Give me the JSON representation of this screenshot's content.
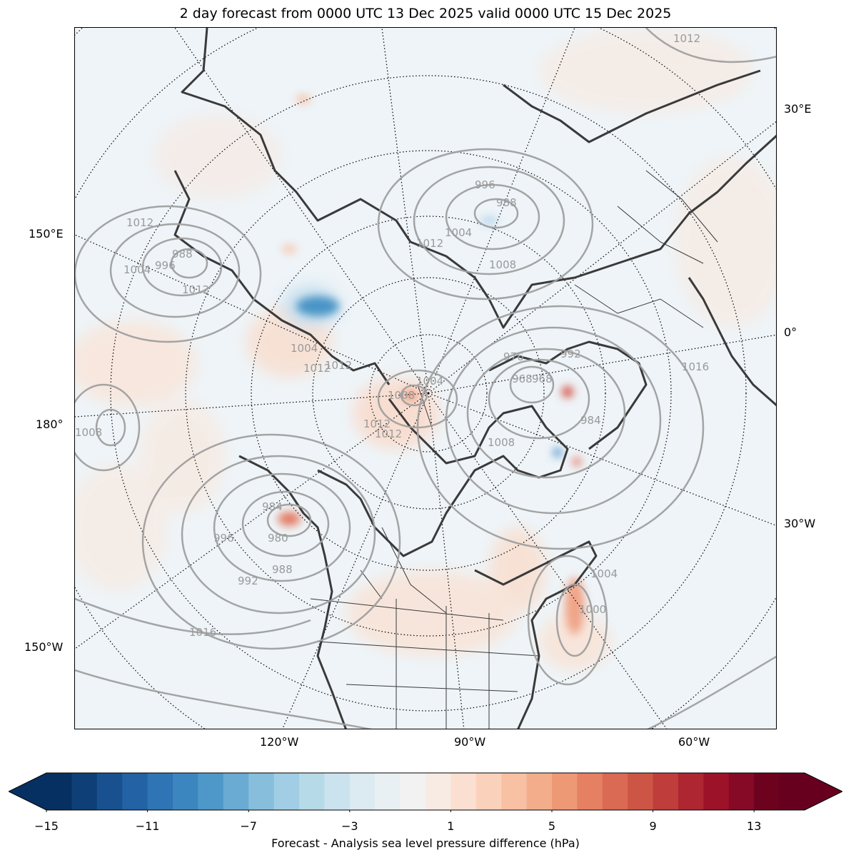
{
  "title": "2 day forecast from 0000 UTC 13 Dec 2025 valid 0000 UTC 15 Dec 2025",
  "map": {
    "projection": "north-polar-stereographic",
    "pole_label": "",
    "longitude_labels": {
      "left": [
        "150°E",
        "180°",
        "150°W"
      ],
      "right": [
        "30°E",
        "0°",
        "30°W"
      ],
      "bottom": [
        "120°W",
        "90°W",
        "60°W"
      ]
    },
    "coastline_color": "#3a3a3a",
    "border_color": "#3a3a3a",
    "isobar_color": "#a0a0a0",
    "isobar_labels": [
      "1012",
      "1012",
      "988",
      "996",
      "1004",
      "1012",
      "1012",
      "1008",
      "1004",
      "1012",
      "1016",
      "1012",
      "1004",
      "1008",
      "996",
      "988",
      "1004",
      "1012",
      "976",
      "968",
      "984",
      "992",
      "1008",
      "984",
      "980",
      "988",
      "992",
      "996",
      "1016",
      "1000",
      "1004",
      "1012",
      "1008",
      "968"
    ]
  },
  "colorbar": {
    "label": "Forecast - Analysis sea level pressure difference (hPa)",
    "ticks": [
      "−15",
      "−11",
      "−7",
      "−3",
      "1",
      "5",
      "9",
      "13"
    ],
    "min": -15,
    "max": 15,
    "step": 1,
    "extend": "both",
    "colors": [
      "#053061",
      "#0e3f77",
      "#195090",
      "#2262a5",
      "#2f74b4",
      "#3c86c0",
      "#4e98c9",
      "#6aabd4",
      "#87bedc",
      "#a1cee4",
      "#b7dae9",
      "#cbe3ee",
      "#dcebf2",
      "#e9f0f4",
      "#f2f2f2",
      "#f8ebe4",
      "#fbe0d2",
      "#fad2bc",
      "#f8c1a3",
      "#f4ad8b",
      "#ee9975",
      "#e58162",
      "#da6a53",
      "#cd5546",
      "#bf3e3b",
      "#ae2631",
      "#9c1229",
      "#860a25",
      "#6d021f",
      "#67001f"
    ],
    "under_color": "#053061",
    "over_color": "#67001f"
  }
}
